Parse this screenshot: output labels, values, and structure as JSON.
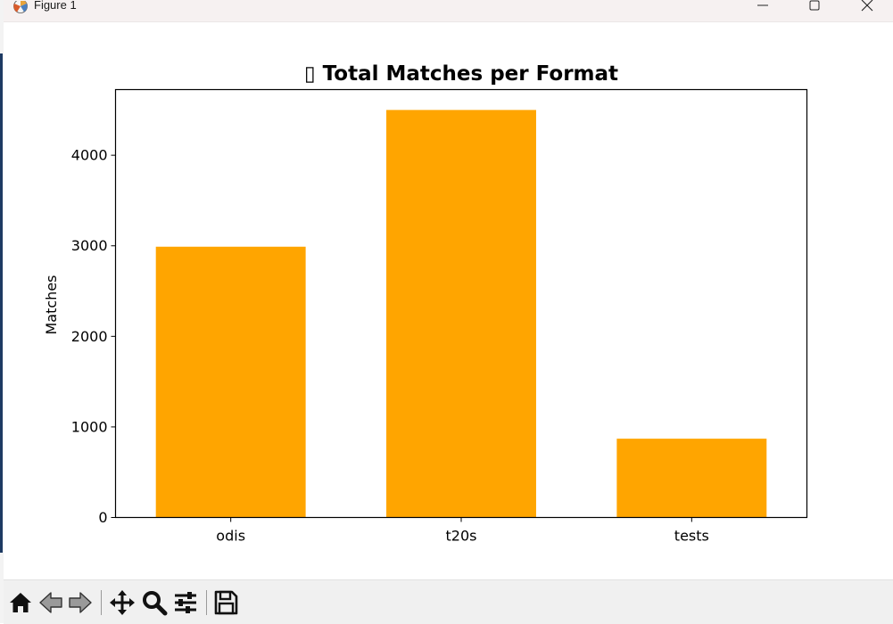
{
  "window": {
    "title": "Figure 1",
    "app_icon": "matplotlib-icon",
    "controls": [
      "minimize-icon",
      "maximize-icon",
      "close-icon"
    ]
  },
  "toolbar": {
    "buttons": [
      "home-icon",
      "back-arrow-icon",
      "forward-arrow-icon",
      "pan-icon",
      "zoom-icon",
      "configure-subplots-icon",
      "save-icon"
    ]
  },
  "chart_data": {
    "type": "bar",
    "title": "▯ Total Matches per Format",
    "xlabel": "",
    "ylabel": "Matches",
    "categories": [
      "odis",
      "t20s",
      "tests"
    ],
    "values": [
      2990,
      4500,
      870
    ],
    "ylim": [
      0,
      4725
    ],
    "yticks": [
      0,
      1000,
      2000,
      3000,
      4000
    ],
    "bar_color": "#ffa500",
    "grid": false,
    "legend": "none"
  }
}
